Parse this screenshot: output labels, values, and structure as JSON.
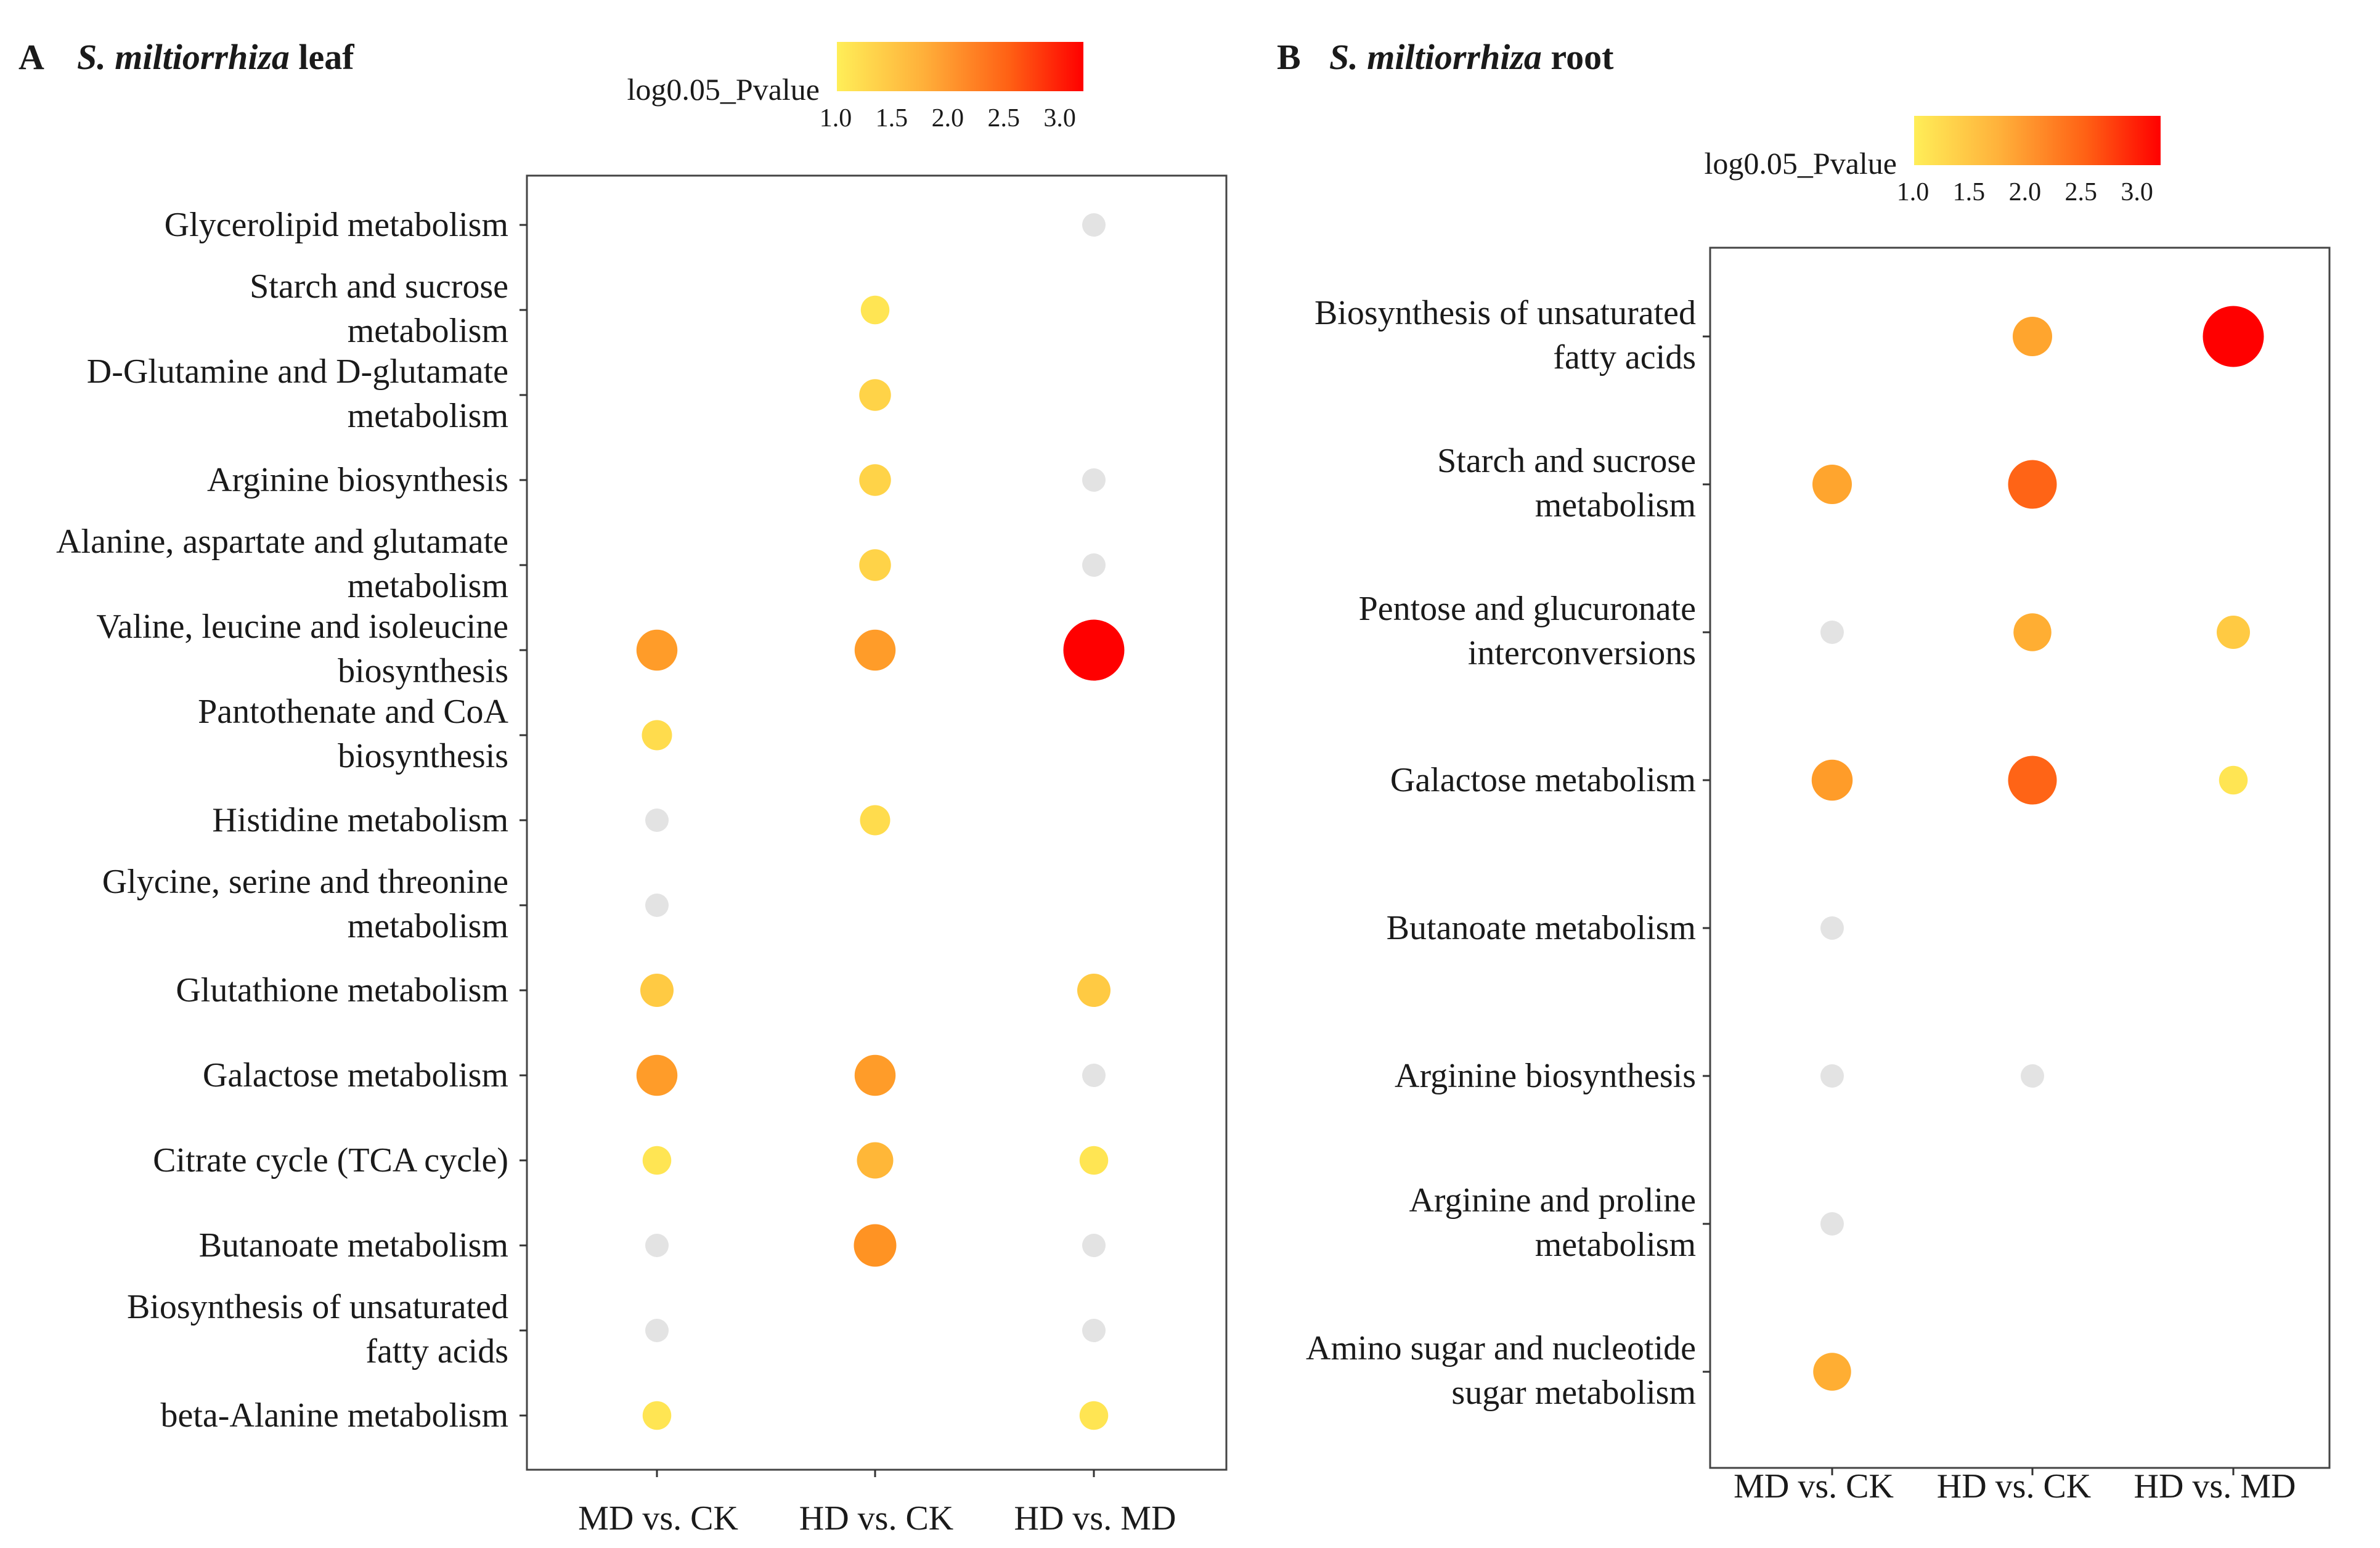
{
  "colors": {
    "low": "#ffee58",
    "mid": "#ff8a1e",
    "high": "#ff0000",
    "na": "#e3e3e3"
  },
  "chart_data": [
    {
      "type": "scatter",
      "panel_label": "A",
      "title_species": "S. miltiorrhiza",
      "title_tissue": "leaf",
      "legend": {
        "title": "log0.05_Pvalue",
        "ticks": [
          "1.0",
          "1.5",
          "2.0",
          "2.5",
          "3.0"
        ],
        "range": [
          1.0,
          3.2
        ]
      },
      "columns": [
        "MD vs. CK",
        "HD vs. CK",
        "HD vs. MD"
      ],
      "rows": [
        {
          "label": [
            "Glycerolipid metabolism"
          ],
          "values": [
            null,
            null,
            0
          ]
        },
        {
          "label": [
            "Starch and sucrose",
            "metabolism"
          ],
          "values": [
            null,
            1.1,
            null
          ]
        },
        {
          "label": [
            "D-Glutamine and D-glutamate",
            "metabolism"
          ],
          "values": [
            null,
            1.3,
            null
          ]
        },
        {
          "label": [
            "Arginine biosynthesis"
          ],
          "values": [
            null,
            1.3,
            0
          ]
        },
        {
          "label": [
            "Alanine, aspartate and glutamate",
            "metabolism"
          ],
          "values": [
            null,
            1.3,
            0
          ]
        },
        {
          "label": [
            "Valine, leucine and isoleucine",
            "biosynthesis"
          ],
          "values": [
            1.9,
            1.9,
            3.2
          ]
        },
        {
          "label": [
            "Pantothenate and CoA",
            "biosynthesis"
          ],
          "values": [
            1.2,
            null,
            null
          ]
        },
        {
          "label": [
            "Histidine metabolism"
          ],
          "values": [
            0,
            1.2,
            null
          ]
        },
        {
          "label": [
            "Glycine, serine and threonine",
            "metabolism"
          ],
          "values": [
            0,
            null,
            null
          ]
        },
        {
          "label": [
            "Glutathione metabolism"
          ],
          "values": [
            1.4,
            null,
            1.4
          ]
        },
        {
          "label": [
            "Galactose metabolism"
          ],
          "values": [
            1.9,
            1.9,
            0
          ]
        },
        {
          "label": [
            "Citrate cycle (TCA cycle)"
          ],
          "values": [
            1.1,
            1.6,
            1.1
          ]
        },
        {
          "label": [
            "Butanoate metabolism"
          ],
          "values": [
            0,
            2.0,
            0
          ]
        },
        {
          "label": [
            "Biosynthesis of unsaturated",
            "fatty acids"
          ],
          "values": [
            0,
            null,
            0
          ]
        },
        {
          "label": [
            "beta-Alanine metabolism"
          ],
          "values": [
            1.1,
            null,
            1.1
          ]
        }
      ]
    },
    {
      "type": "scatter",
      "panel_label": "B",
      "title_species": "S. miltiorrhiza",
      "title_tissue": "root",
      "legend": {
        "title": "log0.05_Pvalue",
        "ticks": [
          "1.0",
          "1.5",
          "2.0",
          "2.5",
          "3.0"
        ],
        "range": [
          1.0,
          3.2
        ]
      },
      "columns": [
        "MD vs. CK",
        "HD vs. CK",
        "HD vs. MD"
      ],
      "rows": [
        {
          "label": [
            "Biosynthesis of unsaturated",
            "fatty acids"
          ],
          "values": [
            null,
            1.8,
            3.2
          ]
        },
        {
          "label": [
            "Starch and sucrose",
            "metabolism"
          ],
          "values": [
            1.8,
            2.4,
            null
          ]
        },
        {
          "label": [
            "Pentose and glucuronate",
            "interconversions"
          ],
          "values": [
            0,
            1.7,
            1.4
          ]
        },
        {
          "label": [
            "Galactose metabolism"
          ],
          "values": [
            1.9,
            2.4,
            1.1
          ]
        },
        {
          "label": [
            "Butanoate metabolism"
          ],
          "values": [
            0,
            null,
            null
          ]
        },
        {
          "label": [
            "Arginine biosynthesis"
          ],
          "values": [
            0,
            0,
            null
          ]
        },
        {
          "label": [
            "Arginine and proline",
            "metabolism"
          ],
          "values": [
            0,
            null,
            null
          ]
        },
        {
          "label": [
            "Amino sugar and nucleotide",
            "sugar metabolism"
          ],
          "values": [
            1.7,
            null,
            null
          ]
        }
      ]
    }
  ]
}
